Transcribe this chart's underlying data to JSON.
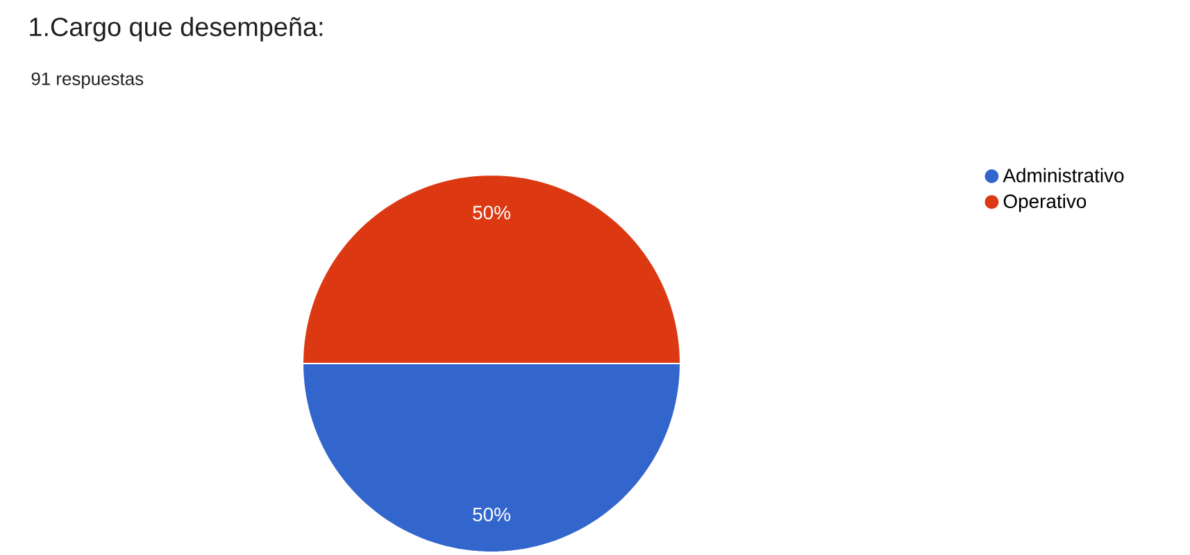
{
  "chart_data": {
    "type": "pie",
    "title": "1.Cargo que desempeña:",
    "subtitle": "91 respuestas",
    "categories": [
      "Administrativo",
      "Operativo"
    ],
    "values": [
      50,
      50
    ],
    "colors": [
      "#3366cc",
      "#dc3912"
    ],
    "value_labels": [
      "50%",
      "50%"
    ],
    "legend": "top right"
  }
}
